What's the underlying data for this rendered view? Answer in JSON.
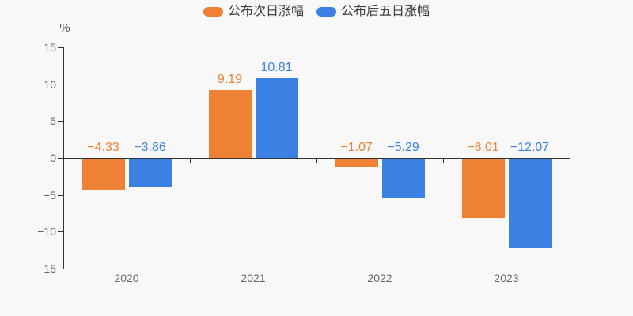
{
  "page": {
    "background": "#f8f8f8"
  },
  "legend": {
    "items": [
      {
        "label": "公布次日涨幅",
        "color": "#ee8133"
      },
      {
        "label": "公布后五日涨幅",
        "color": "#3b80e3"
      }
    ]
  },
  "chart_data": {
    "type": "bar",
    "title": "",
    "categories": [
      "2020",
      "2021",
      "2022",
      "2023"
    ],
    "series": [
      {
        "name": "公布次日涨幅",
        "color": "#ee8133",
        "values": [
          -4.33,
          9.19,
          -1.07,
          -8.01
        ],
        "value_labels": [
          "−4.33",
          "9.19",
          "−1.07",
          "−8.01"
        ]
      },
      {
        "name": "公布后五日涨幅",
        "color": "#3b80e3",
        "values": [
          -3.86,
          10.81,
          -5.29,
          -12.07
        ],
        "value_labels": [
          "−3.86",
          "10.81",
          "−5.29",
          "−12.07"
        ]
      }
    ],
    "xlabel": "",
    "ylabel": "%",
    "ylim": [
      -15,
      15
    ],
    "yticks": [
      15,
      10,
      5,
      0,
      -5,
      -10,
      -15
    ],
    "ytick_labels": [
      "15",
      "10",
      "5",
      "0",
      "−5",
      "−10",
      "−15"
    ],
    "grid": false,
    "legend_position": "top",
    "axis_color": "#333333",
    "tick_label_color": "#666666"
  }
}
